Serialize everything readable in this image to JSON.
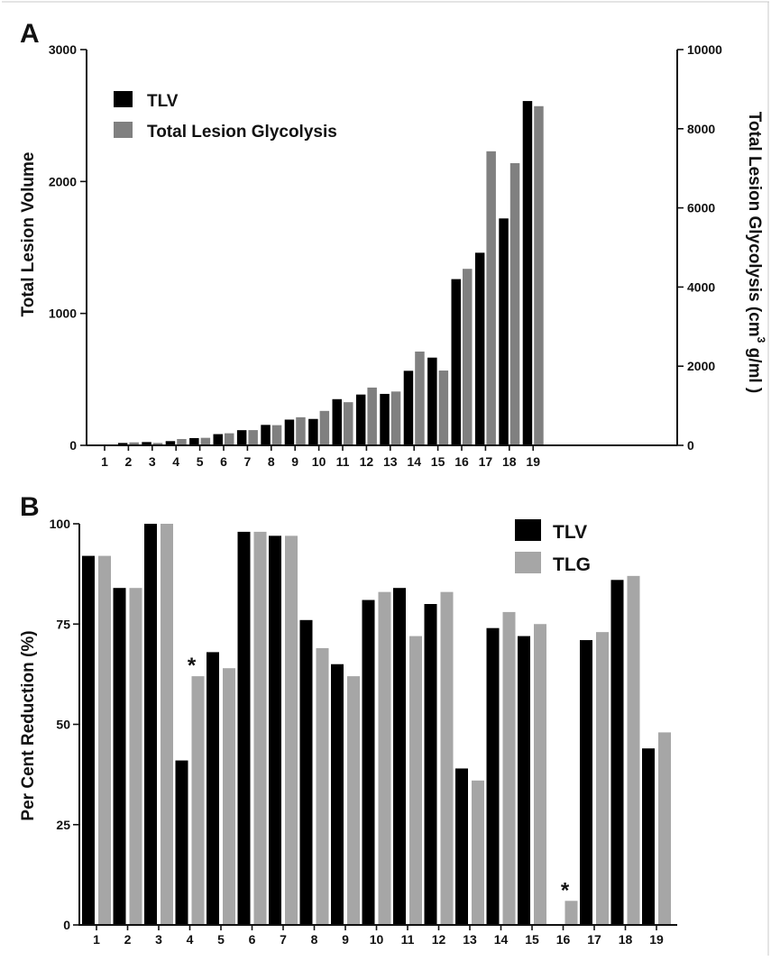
{
  "panel_a": {
    "label": "A",
    "legend": {
      "tlv": "TLV",
      "tlg": "Total Lesion Glycolysis"
    },
    "left_axis_title": "Total Lesion Volume",
    "right_axis_title_pre": "Total Lesion Glycolysis (cm",
    "right_axis_title_sup": "3",
    "right_axis_title_post": " g/ml )",
    "left_ticks": [
      "0",
      "1000",
      "2000",
      "3000"
    ],
    "right_ticks": [
      "0",
      "2000",
      "4000",
      "6000",
      "8000",
      "10000"
    ]
  },
  "panel_b": {
    "label": "B",
    "legend": {
      "tlv": "TLV",
      "tlg": "TLG"
    },
    "y_axis_title": "Per Cent Reduction (%)",
    "y_ticks": [
      "0",
      "25",
      "50",
      "75",
      "100"
    ],
    "annotation": "*"
  },
  "colors": {
    "tlv": "#000000",
    "tlg_a": "#808080",
    "tlg_b": "#a6a6a6",
    "axis": "#111111",
    "frame": "#c8c8c8"
  },
  "chart_data": [
    {
      "type": "bar",
      "categories": [
        "1",
        "2",
        "3",
        "4",
        "5",
        "6",
        "7",
        "8",
        "9",
        "10",
        "11",
        "12",
        "13",
        "14",
        "15",
        "16",
        "17",
        "18",
        "19"
      ],
      "series": [
        {
          "name": "TLV",
          "axis": "left",
          "values": [
            5,
            18,
            25,
            32,
            55,
            85,
            115,
            155,
            195,
            200,
            350,
            385,
            390,
            565,
            665,
            1260,
            1460,
            1720,
            2610
          ]
        },
        {
          "name": "Total Lesion Glycolysis",
          "axis": "right",
          "values": [
            20,
            75,
            60,
            160,
            190,
            305,
            385,
            510,
            710,
            870,
            1090,
            1460,
            1360,
            2370,
            1890,
            4460,
            7430,
            7130,
            8570
          ]
        }
      ],
      "y_left": {
        "label": "Total Lesion Volume",
        "lim": [
          0,
          3000
        ],
        "ticks": [
          0,
          1000,
          2000,
          3000
        ]
      },
      "y_right": {
        "label": "Total Lesion Glycolysis (cm3 g/ml )",
        "lim": [
          0,
          10000
        ],
        "ticks": [
          0,
          2000,
          4000,
          6000,
          8000,
          10000
        ]
      },
      "legend": "top-left",
      "grid": false
    },
    {
      "type": "bar",
      "categories": [
        "1",
        "2",
        "3",
        "4",
        "5",
        "6",
        "7",
        "8",
        "9",
        "10",
        "11",
        "12",
        "13",
        "14",
        "15",
        "16",
        "17",
        "18",
        "19"
      ],
      "series": [
        {
          "name": "TLV",
          "values": [
            92,
            84,
            100,
            41,
            68,
            98,
            97,
            76,
            65,
            81,
            84,
            80,
            39,
            74,
            72,
            0,
            71,
            86,
            44
          ]
        },
        {
          "name": "TLG",
          "values": [
            92,
            84,
            100,
            62,
            64,
            98,
            97,
            69,
            62,
            83,
            72,
            83,
            36,
            78,
            75,
            6,
            73,
            87,
            48
          ]
        }
      ],
      "annotations": [
        {
          "category": "4",
          "text": "*"
        },
        {
          "category": "16",
          "text": "*"
        }
      ],
      "ylabel": "Per Cent Reduction (%)",
      "ylim": [
        0,
        100
      ],
      "yticks": [
        0,
        25,
        50,
        75,
        100
      ],
      "legend": "top-right",
      "grid": false
    }
  ]
}
